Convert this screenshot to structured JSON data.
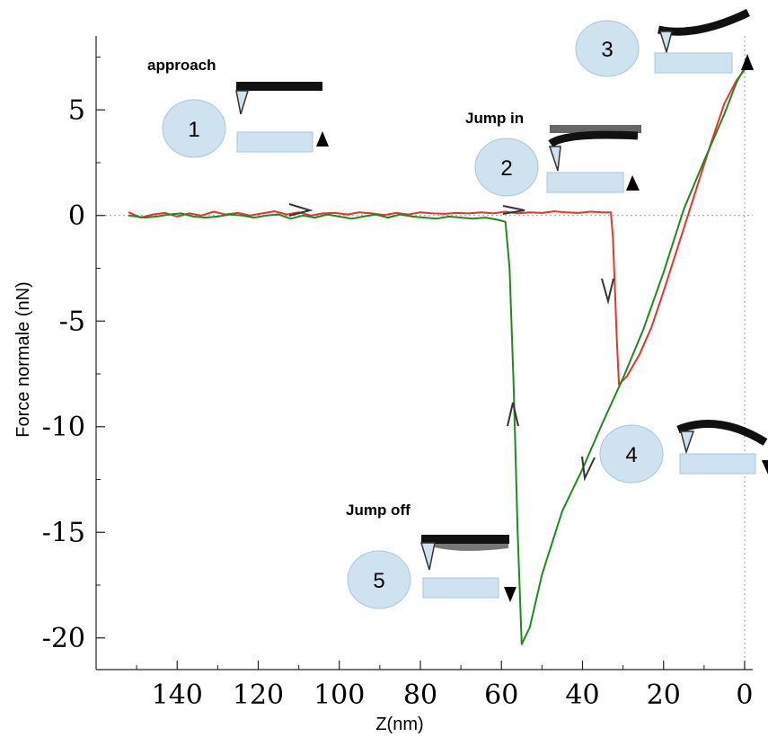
{
  "chart_data": {
    "type": "line",
    "title": "",
    "xlabel": "Z(nm)",
    "ylabel": "Force normale (nN)",
    "xlim": [
      160,
      -2
    ],
    "ylim": [
      -21.5,
      8.5
    ],
    "x_reversed": true,
    "x_ticks": [
      140,
      120,
      100,
      80,
      60,
      40,
      20,
      0
    ],
    "y_ticks": [
      5,
      0,
      -5,
      -10,
      -15,
      -20
    ],
    "grid": false,
    "reference_lines": {
      "y": 0,
      "x": 0,
      "style": "dotted"
    },
    "colors": {
      "approach": "#e8342b",
      "retract": "#1f8a1f",
      "arrows": "#333333",
      "bubble": "#cfe2f0",
      "cantilever": "#111111"
    },
    "series": [
      {
        "color": "#e8342b",
        "x": [
          152,
          149,
          146,
          143,
          140,
          137,
          134,
          131,
          128,
          125,
          122,
          119,
          116,
          113,
          110,
          107,
          104,
          101,
          98,
          95,
          92,
          89,
          86,
          83,
          80,
          77,
          74,
          71,
          68,
          65,
          62,
          59,
          56,
          53,
          50,
          47,
          44,
          41,
          38,
          35,
          33,
          32.5,
          32,
          31.5,
          31,
          29,
          26,
          23,
          20,
          17,
          14,
          11,
          8,
          5,
          2,
          0
        ],
        "y": [
          0.15,
          -0.1,
          0.05,
          0.12,
          -0.05,
          0.1,
          0.0,
          0.18,
          0.05,
          0.12,
          0.0,
          0.1,
          0.2,
          0.05,
          0.15,
          0.0,
          0.1,
          0.12,
          0.05,
          0.15,
          0.1,
          0.02,
          0.12,
          0.05,
          0.15,
          0.1,
          0.08,
          0.12,
          0.1,
          0.15,
          0.1,
          0.18,
          0.1,
          0.15,
          0.12,
          0.2,
          0.15,
          0.12,
          0.18,
          0.15,
          0.15,
          -1.0,
          -3.5,
          -6.0,
          -8.0,
          -7.6,
          -6.6,
          -5.3,
          -3.6,
          -1.8,
          0.0,
          1.8,
          3.6,
          5.3,
          6.4,
          6.9
        ]
      },
      {
        "color": "#1f8a1f",
        "x": [
          152,
          148,
          145,
          142,
          139,
          136,
          133,
          130,
          127,
          124,
          121,
          118,
          115,
          112,
          109,
          106,
          103,
          100,
          97,
          94,
          91,
          88,
          85,
          82,
          79,
          76,
          73,
          70,
          67,
          64,
          61,
          60,
          59,
          58,
          57,
          56,
          55,
          53,
          50,
          45,
          40,
          35,
          30,
          25,
          20,
          15,
          10,
          5,
          2,
          0
        ],
        "y": [
          0.0,
          -0.1,
          -0.05,
          0.05,
          0.1,
          -0.05,
          -0.1,
          -0.05,
          0.05,
          0.0,
          -0.1,
          0.0,
          0.05,
          -0.15,
          0.0,
          -0.1,
          0.05,
          -0.05,
          -0.15,
          -0.05,
          0.05,
          -0.1,
          0.05,
          -0.05,
          -0.1,
          -0.15,
          -0.05,
          -0.1,
          -0.15,
          -0.1,
          -0.2,
          -0.25,
          -0.3,
          -2.5,
          -8.0,
          -15.0,
          -20.3,
          -19.5,
          -17.0,
          -14.0,
          -12.0,
          -9.8,
          -7.7,
          -5.4,
          -2.7,
          0.3,
          2.6,
          4.8,
          6.3,
          7.0
        ]
      }
    ],
    "annotations": [
      {
        "text": "approach"
      },
      {
        "text": "Jump in"
      },
      {
        "text": "Jump off"
      }
    ],
    "steps": [
      "1",
      "2",
      "3",
      "4",
      "5"
    ]
  }
}
